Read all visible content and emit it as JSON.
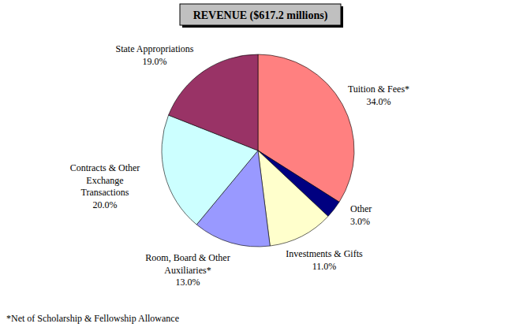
{
  "chart_data": {
    "type": "pie",
    "title": "REVENUE ($617.2 millions)",
    "categories": [
      "Tuition & Fees*",
      "Other",
      "Investments & Gifts",
      "Room, Board & Other Auxiliaries*",
      "Contracts & Other Exchange Transactions",
      "State Appropriations"
    ],
    "values": [
      34.0,
      3.0,
      11.0,
      13.0,
      20.0,
      19.0
    ],
    "value_labels": [
      "34.0%",
      "3.0%",
      "11.0%",
      "13.0%",
      "20.0%",
      "19.0%"
    ],
    "colors": [
      "#ff8080",
      "#000080",
      "#ffffcc",
      "#9999ff",
      "#ccffff",
      "#993366"
    ],
    "data_labels": true,
    "annotations": [
      "*Net of Scholarship & Fellowship Allowance"
    ]
  }
}
